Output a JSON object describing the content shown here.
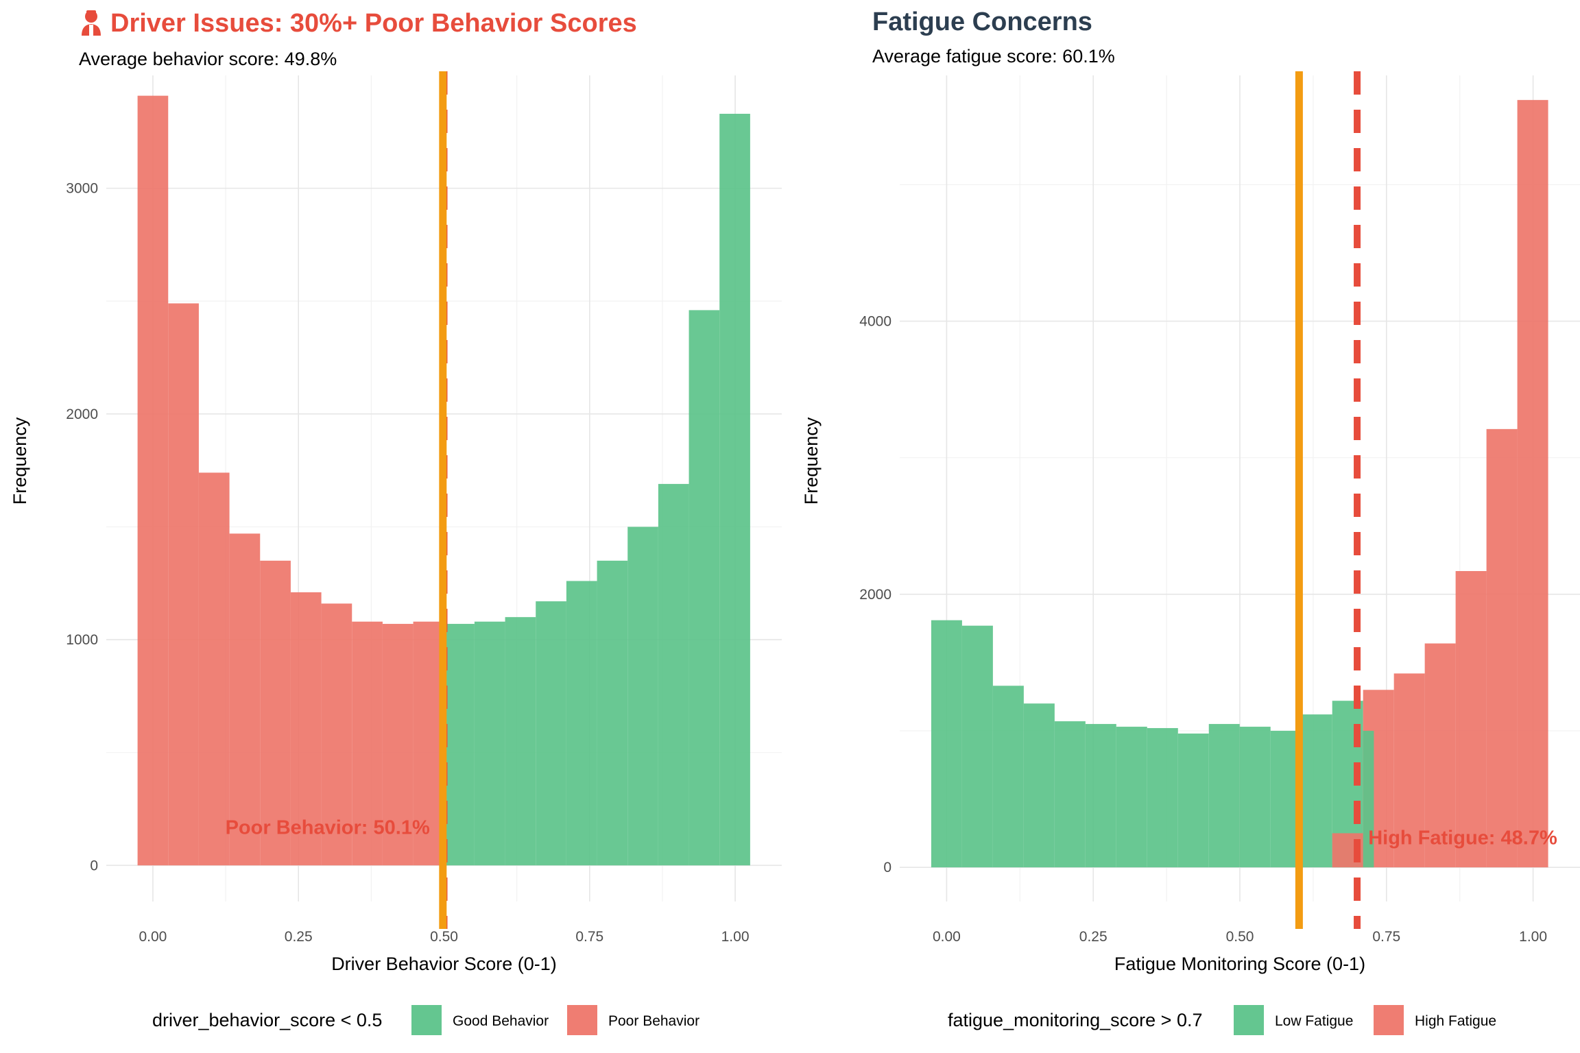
{
  "chart_data": [
    {
      "type": "bar",
      "title": "Driver Issues: 30%+ Poor Behavior Scores",
      "title_icon": "person-icon",
      "title_color": "#e74c3c",
      "subtitle": "Average behavior score: 49.8%",
      "xlabel": "Driver Behavior Score (0-1)",
      "ylabel": "Frequency",
      "xlim": [
        -0.08,
        1.08
      ],
      "ylim": [
        -160,
        3500
      ],
      "x_ticks": [
        0,
        0.25,
        0.5,
        0.75,
        1
      ],
      "x_tick_labels": [
        "0.00",
        "0.25",
        "0.50",
        "0.75",
        "1.00"
      ],
      "y_ticks": [
        0,
        1000,
        2000,
        3000
      ],
      "y_tick_labels": [
        "0",
        "1000",
        "2000",
        "3000"
      ],
      "grid": true,
      "bin_width": 0.0526,
      "bin_start": -0.0263,
      "bins": [
        {
          "count": 3410,
          "group": "poor"
        },
        {
          "count": 2490,
          "group": "poor"
        },
        {
          "count": 1740,
          "group": "poor"
        },
        {
          "count": 1470,
          "group": "poor"
        },
        {
          "count": 1350,
          "group": "poor"
        },
        {
          "count": 1210,
          "group": "poor"
        },
        {
          "count": 1160,
          "group": "poor"
        },
        {
          "count": 1080,
          "group": "poor"
        },
        {
          "count": 1070,
          "group": "poor"
        },
        {
          "count": 1080,
          "group": "poor"
        },
        {
          "count": 1070,
          "group": "good"
        },
        {
          "count": 1080,
          "group": "good"
        },
        {
          "count": 1100,
          "group": "good"
        },
        {
          "count": 1170,
          "group": "good"
        },
        {
          "count": 1260,
          "group": "good"
        },
        {
          "count": 1350,
          "group": "good"
        },
        {
          "count": 1500,
          "group": "good"
        },
        {
          "count": 1690,
          "group": "good"
        },
        {
          "count": 2460,
          "group": "good"
        },
        {
          "count": 3330,
          "group": "good"
        }
      ],
      "mean_line": {
        "x": 0.498,
        "color": "#f39c12"
      },
      "threshold_line": {
        "x": 0.5,
        "color": "#e74c3c"
      },
      "annotation": {
        "text": "Poor Behavior: 50.1%",
        "x": 0.3,
        "y": 90
      },
      "legend": {
        "title": "driver_behavior_score < 0.5",
        "position": "bottom",
        "entries": [
          {
            "label": "Good Behavior",
            "color": "#5cc38a"
          },
          {
            "label": "Poor Behavior",
            "color": "#ee766a"
          }
        ]
      }
    },
    {
      "type": "bar",
      "title": "Fatigue Concerns",
      "title_color": "#2c3e50",
      "subtitle": "Average fatigue score: 60.1%",
      "xlabel": "Fatigue Monitoring Score (0-1)",
      "ylabel": "Frequency",
      "xlim": [
        -0.08,
        1.08
      ],
      "ylim": [
        -250,
        5800
      ],
      "x_ticks": [
        0,
        0.25,
        0.5,
        0.75,
        1
      ],
      "x_tick_labels": [
        "0.00",
        "0.25",
        "0.50",
        "0.75",
        "1.00"
      ],
      "y_ticks": [
        0,
        2000,
        4000
      ],
      "y_tick_labels": [
        "0",
        "2000",
        "4000"
      ],
      "grid": true,
      "bin_width": 0.0526,
      "bin_start": -0.0263,
      "bins": [
        {
          "count": 1810,
          "group": "low"
        },
        {
          "count": 1770,
          "group": "low"
        },
        {
          "count": 1330,
          "group": "low"
        },
        {
          "count": 1200,
          "group": "low"
        },
        {
          "count": 1070,
          "group": "low"
        },
        {
          "count": 1050,
          "group": "low"
        },
        {
          "count": 1030,
          "group": "low"
        },
        {
          "count": 1020,
          "group": "low"
        },
        {
          "count": 980,
          "group": "low"
        },
        {
          "count": 1050,
          "group": "low"
        },
        {
          "count": 1030,
          "group": "low"
        },
        {
          "count": 1000,
          "group": "low"
        },
        {
          "count": 1120,
          "group": "low"
        },
        {
          "count": 1220,
          "group": "low",
          "high": 250
        },
        {
          "count": 1300,
          "group": "high",
          "low": 1000
        },
        {
          "count": 1420,
          "group": "high"
        },
        {
          "count": 1640,
          "group": "high"
        },
        {
          "count": 2170,
          "group": "high"
        },
        {
          "count": 3210,
          "group": "high"
        },
        {
          "count": 5620,
          "group": "high"
        }
      ],
      "mean_line": {
        "x": 0.601,
        "color": "#f39c12"
      },
      "threshold_line": {
        "x": 0.7,
        "color": "#e74c3c"
      },
      "annotation": {
        "text": "High Fatigue: 48.7%",
        "x": 0.88,
        "y": 90
      },
      "legend": {
        "title": "fatigue_monitoring_score > 0.7",
        "position": "bottom",
        "entries": [
          {
            "label": "Low Fatigue",
            "color": "#5cc38a"
          },
          {
            "label": "High Fatigue",
            "color": "#ee766a"
          }
        ]
      }
    }
  ]
}
